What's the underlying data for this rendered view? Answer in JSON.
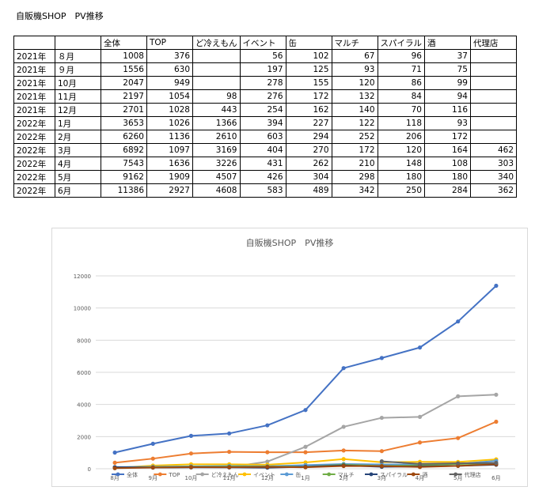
{
  "page": {
    "title": "自販機SHOP　PV推移"
  },
  "table": {
    "headers": [
      "",
      "",
      "全体",
      "TOP",
      "ど冷えもん",
      "イベント",
      "缶",
      "マルチ",
      "スパイラル",
      "酒",
      "代理店"
    ],
    "rows": [
      [
        "2021年",
        "８月",
        "1008",
        "376",
        "",
        "56",
        "102",
        "67",
        "96",
        "37",
        ""
      ],
      [
        "2021年",
        "９月",
        "1556",
        "630",
        "",
        "197",
        "125",
        "93",
        "71",
        "75",
        ""
      ],
      [
        "2021年",
        "10月",
        "2047",
        "949",
        "",
        "278",
        "155",
        "120",
        "86",
        "99",
        ""
      ],
      [
        "2021年",
        "11月",
        "2197",
        "1054",
        "98",
        "276",
        "172",
        "132",
        "84",
        "94",
        ""
      ],
      [
        "2021年",
        "12月",
        "2701",
        "1028",
        "443",
        "254",
        "162",
        "140",
        "70",
        "116",
        ""
      ],
      [
        "2022年",
        "1月",
        "3653",
        "1026",
        "1366",
        "394",
        "227",
        "122",
        "118",
        "93",
        ""
      ],
      [
        "2022年",
        "2月",
        "6260",
        "1136",
        "2610",
        "603",
        "294",
        "252",
        "206",
        "172",
        ""
      ],
      [
        "2022年",
        "3月",
        "6892",
        "1097",
        "3169",
        "404",
        "270",
        "172",
        "120",
        "164",
        "462"
      ],
      [
        "2022年",
        "4月",
        "7543",
        "1636",
        "3226",
        "431",
        "262",
        "210",
        "148",
        "108",
        "303"
      ],
      [
        "2022年",
        "5月",
        "9162",
        "1909",
        "4507",
        "426",
        "304",
        "298",
        "180",
        "180",
        "340"
      ],
      [
        "2022年",
        "6月",
        "11386",
        "2927",
        "4608",
        "583",
        "489",
        "342",
        "250",
        "284",
        "362"
      ]
    ]
  },
  "chart_data": {
    "type": "line",
    "title": "自販機SHOP　PV推移",
    "categories": [
      "8月",
      "9月",
      "10月",
      "11月",
      "12月",
      "1月",
      "2月",
      "3月",
      "4月",
      "5月",
      "6月"
    ],
    "ylim": [
      0,
      12000
    ],
    "yticks": [
      "0",
      "2000",
      "4000",
      "6000",
      "8000",
      "10000",
      "12000"
    ],
    "grid": true,
    "legend": "bottom",
    "series": [
      {
        "name": "全体",
        "color": "#4472c4",
        "values": [
          1008,
          1556,
          2047,
          2197,
          2701,
          3653,
          6260,
          6892,
          7543,
          9162,
          11386
        ]
      },
      {
        "name": "TOP",
        "color": "#ed7d31",
        "values": [
          376,
          630,
          949,
          1054,
          1028,
          1026,
          1136,
          1097,
          1636,
          1909,
          2927
        ]
      },
      {
        "name": "ど冷えもん",
        "color": "#a5a5a5",
        "values": [
          null,
          null,
          null,
          98,
          443,
          1366,
          2610,
          3169,
          3226,
          4507,
          4608
        ]
      },
      {
        "name": "イベント",
        "color": "#ffc000",
        "values": [
          56,
          197,
          278,
          276,
          254,
          394,
          603,
          404,
          431,
          426,
          583
        ]
      },
      {
        "name": "缶",
        "color": "#5b9bd5",
        "values": [
          102,
          125,
          155,
          172,
          162,
          227,
          294,
          270,
          262,
          304,
          489
        ]
      },
      {
        "name": "マルチ",
        "color": "#70ad47",
        "values": [
          67,
          93,
          120,
          132,
          140,
          122,
          252,
          172,
          210,
          298,
          342
        ]
      },
      {
        "name": "スパイラル",
        "color": "#264478",
        "values": [
          96,
          71,
          86,
          84,
          70,
          118,
          206,
          120,
          148,
          180,
          250
        ]
      },
      {
        "name": "酒",
        "color": "#9e480e",
        "values": [
          37,
          75,
          99,
          94,
          116,
          93,
          172,
          164,
          108,
          180,
          284
        ]
      },
      {
        "name": "代理店",
        "color": "#636363",
        "values": [
          null,
          null,
          null,
          null,
          null,
          null,
          null,
          462,
          303,
          340,
          362
        ]
      }
    ]
  }
}
